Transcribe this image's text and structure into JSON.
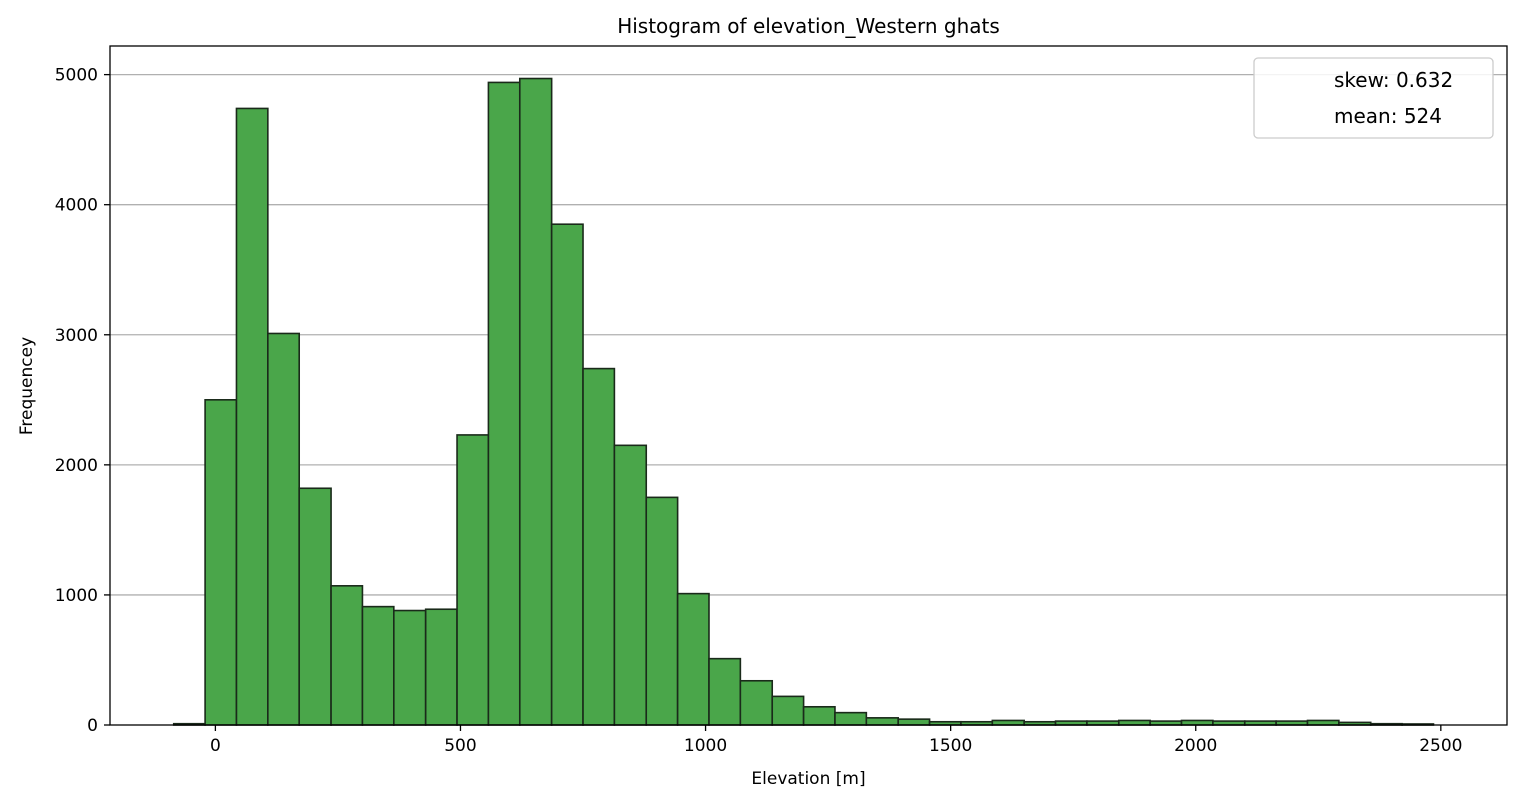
{
  "chart_data": {
    "type": "bar",
    "title": "Histogram of elevation_Western ghats",
    "xlabel": "Elevation [m]",
    "ylabel": "Frequencey",
    "xlim": [
      -215,
      2635
    ],
    "ylim": [
      0,
      5220
    ],
    "xticks": [
      0,
      500,
      1000,
      1500,
      2000,
      2500
    ],
    "yticks": [
      0,
      1000,
      2000,
      3000,
      4000,
      5000
    ],
    "grid": "y",
    "legend": {
      "position": "top-right",
      "entries": [
        "skew: 0.632",
        "mean: 524"
      ]
    },
    "bin_edges": [
      -85,
      -21,
      43,
      107,
      171,
      236,
      300,
      364,
      429,
      493,
      557,
      621,
      686,
      750,
      814,
      879,
      943,
      1007,
      1071,
      1136,
      1200,
      1264,
      1328,
      1393,
      1457,
      1521,
      1585,
      1650,
      1714,
      1778,
      1843,
      1907,
      1971,
      2035,
      2100,
      2164,
      2228,
      2292,
      2357,
      2421,
      2485
    ],
    "counts": [
      10,
      2500,
      4740,
      3010,
      1820,
      1070,
      910,
      880,
      890,
      2230,
      4940,
      4970,
      3850,
      2740,
      2150,
      1750,
      1010,
      510,
      340,
      220,
      140,
      95,
      55,
      45,
      25,
      25,
      35,
      25,
      30,
      30,
      35,
      30,
      35,
      30,
      30,
      30,
      35,
      20,
      10,
      8
    ]
  }
}
